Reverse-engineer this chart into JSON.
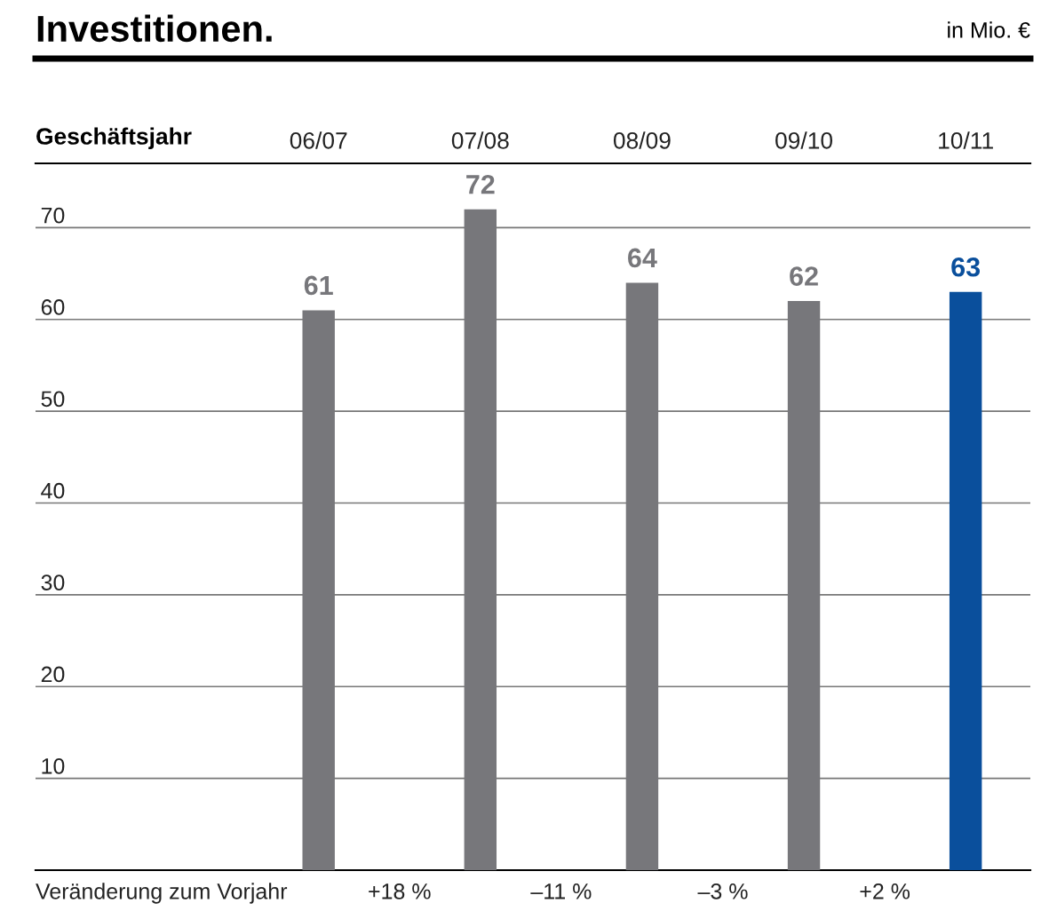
{
  "chart_data": {
    "type": "bar",
    "title": "Investitionen.",
    "ylabel": "in Mio. €",
    "xlabel": "Geschäftsjahr",
    "categories": [
      "06/07",
      "07/08",
      "08/09",
      "09/10",
      "10/11"
    ],
    "values": [
      61,
      72,
      64,
      62,
      63
    ],
    "colors": [
      "#77777b",
      "#77777b",
      "#77777b",
      "#77777b",
      "#0a4f9c"
    ],
    "ylim": [
      0,
      77
    ],
    "yticks": [
      10,
      20,
      30,
      40,
      50,
      60,
      70
    ],
    "grid": "y",
    "data_labels": true,
    "annotations": [
      "Veränderung zum Vorjahr",
      "+18 %",
      "–11 %",
      "–3 %",
      "+2 %"
    ]
  }
}
